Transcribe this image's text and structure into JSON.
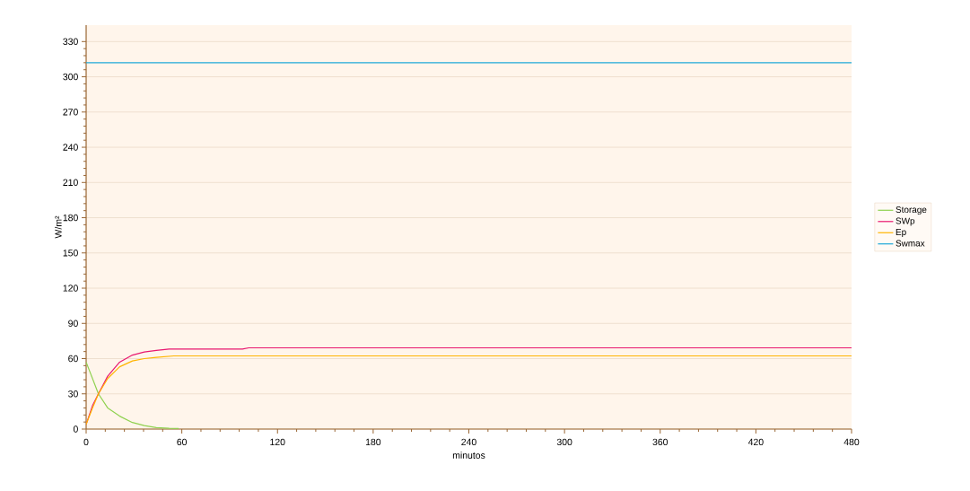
{
  "chart_data": {
    "type": "line",
    "xlabel": "minutos",
    "ylabel": "W/m²",
    "xlim": [
      0,
      480
    ],
    "ylim": [
      0,
      344
    ],
    "xticks": [
      0,
      60,
      120,
      180,
      240,
      300,
      360,
      420,
      480
    ],
    "yticks": [
      0,
      30,
      60,
      90,
      120,
      150,
      180,
      210,
      240,
      270,
      300,
      330
    ],
    "grid": "y",
    "legend": "right",
    "marker": "none",
    "line_style": "solid",
    "series": [
      {
        "name": "Storage",
        "color": "#8fd14f",
        "x": [
          0,
          7.7,
          13.5,
          21,
          29,
          36.5,
          44,
          52,
          58
        ],
        "values": [
          57,
          30,
          18,
          11,
          5.6,
          3,
          1.3,
          0.6,
          0.5
        ]
      },
      {
        "name": "SWp",
        "color": "#e8176f",
        "x": [
          0,
          4,
          7.7,
          13.5,
          21,
          29,
          36.5,
          44,
          52,
          98,
          102,
          480
        ],
        "values": [
          4,
          20,
          30,
          45,
          57,
          63,
          65.6,
          67,
          68.2,
          68.2,
          69.2,
          69.2
        ]
      },
      {
        "name": "Ep",
        "color": "#ffb400",
        "x": [
          0,
          4,
          7.7,
          13.5,
          21,
          29,
          36.5,
          44,
          55,
          480
        ],
        "values": [
          4,
          18,
          30,
          43,
          53,
          58,
          60,
          61,
          62.3,
          62.3
        ]
      },
      {
        "name": "Swmax",
        "color": "#1fa8d8",
        "x": [
          0,
          480
        ],
        "values": [
          312,
          312
        ]
      }
    ]
  }
}
